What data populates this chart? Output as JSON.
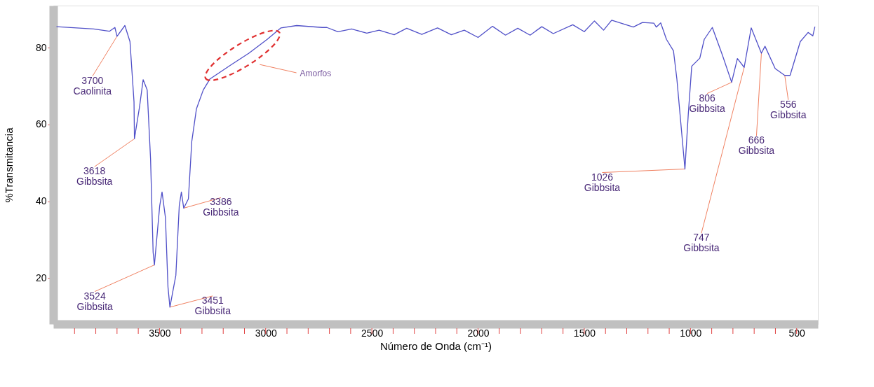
{
  "chart_data": {
    "type": "line",
    "xlabel": "Número de Onda (cm⁻¹)",
    "ylabel": "%Transmitancia",
    "xlim": [
      4000,
      400
    ],
    "ylim": [
      8,
      91
    ],
    "xticks": [
      {
        "value": 3900,
        "label": null
      },
      {
        "value": 3800,
        "label": null
      },
      {
        "value": 3700,
        "label": null
      },
      {
        "value": 3600,
        "label": null
      },
      3500,
      {
        "value": 3400,
        "label": null
      },
      {
        "value": 3300,
        "label": null
      },
      {
        "value": 3200,
        "label": null
      },
      {
        "value": 3100,
        "label": null
      },
      3000,
      {
        "value": 2900,
        "label": null
      },
      {
        "value": 2800,
        "label": null
      },
      {
        "value": 2700,
        "label": null
      },
      {
        "value": 2600,
        "label": null
      },
      2500,
      {
        "value": 2400,
        "label": null
      },
      {
        "value": 2300,
        "label": null
      },
      {
        "value": 2200,
        "label": null
      },
      {
        "value": 2100,
        "label": null
      },
      2000,
      {
        "value": 1900,
        "label": null
      },
      {
        "value": 1800,
        "label": null
      },
      {
        "value": 1700,
        "label": null
      },
      {
        "value": 1600,
        "label": null
      },
      1500,
      {
        "value": 1400,
        "label": null
      },
      {
        "value": 1300,
        "label": null
      },
      {
        "value": 1200,
        "label": null
      },
      {
        "value": 1100,
        "label": null
      },
      1000,
      {
        "value": 900,
        "label": null
      },
      {
        "value": 800,
        "label": null
      },
      {
        "value": 700,
        "label": null
      },
      {
        "value": 600,
        "label": null
      },
      500
    ],
    "yticks": [
      20,
      40,
      60,
      80
    ],
    "grid": false,
    "legend": false,
    "marker": "none",
    "line_style": "solid",
    "series": [
      {
        "color": "#5050c8",
        "x": [
          3985,
          3810,
          3736,
          3710,
          3700,
          3663,
          3639,
          3620,
          3618,
          3594,
          3577,
          3558,
          3542,
          3530,
          3524,
          3499,
          3488,
          3472,
          3460,
          3451,
          3423,
          3407,
          3397,
          3386,
          3364,
          3348,
          3326,
          3294,
          3262,
          3165,
          3079,
          2993,
          2928,
          2854,
          2734,
          2712,
          2660,
          2595,
          2524,
          2466,
          2395,
          2336,
          2265,
          2191,
          2126,
          2065,
          2000,
          1932,
          1871,
          1813,
          1755,
          1700,
          1646,
          1554,
          1500,
          1452,
          1409,
          1371,
          1269,
          1226,
          1172,
          1161,
          1140,
          1113,
          1080,
          1064,
          1026,
          1010,
          994,
          956,
          935,
          897,
          849,
          806,
          779,
          747,
          714,
          666,
          649,
          601,
          556,
          531,
          483,
          446,
          424,
          414
        ],
        "values": [
          85.5,
          84.9,
          84.3,
          85.3,
          83,
          85.8,
          81.6,
          65.9,
          56.3,
          64.6,
          71.7,
          69,
          50.9,
          26.7,
          23.4,
          38.8,
          42.4,
          35.7,
          17.6,
          12.4,
          20.7,
          38.8,
          42.4,
          38.2,
          40.6,
          55.6,
          64.1,
          69,
          71.9,
          75.5,
          78.6,
          82.2,
          85.2,
          85.8,
          85.3,
          85.3,
          84.2,
          84.9,
          83.8,
          84.6,
          83.4,
          85.1,
          83.5,
          85.2,
          83.4,
          84.6,
          82.7,
          85.6,
          83.3,
          85.1,
          83.3,
          85.5,
          83.7,
          86,
          84.2,
          87,
          84.6,
          87.2,
          85.4,
          86.6,
          86.4,
          85.4,
          86.5,
          82.2,
          79.2,
          71.9,
          48.4,
          62.9,
          75.2,
          77.3,
          82.2,
          85.3,
          78,
          71,
          77.2,
          74.9,
          85.2,
          78.6,
          80.4,
          74.6,
          72.8,
          72.8,
          81.6,
          84,
          83.1,
          85.5
        ]
      }
    ],
    "annotations": [
      {
        "text": "3700\nCaolinita",
        "x": 3700,
        "y": 83
      },
      {
        "text": "3618\nGibbsita",
        "x": 3618,
        "y": 56.3
      },
      {
        "text": "3524\nGibbsita",
        "x": 3524,
        "y": 23.4
      },
      {
        "text": "3451\nGibbsita",
        "x": 3451,
        "y": 12.4
      },
      {
        "text": "3386\nGibbsita",
        "x": 3386,
        "y": 38.2
      },
      "Amorfos",
      {
        "text": "1026\nGibbsita",
        "x": 1026,
        "y": 48.4
      },
      {
        "text": "806\nGibbsita",
        "x": 806,
        "y": 71
      },
      {
        "text": "747\nGibbsita",
        "x": 747,
        "y": 74.9
      },
      {
        "text": "666\nGibbsita",
        "x": 666,
        "y": 78.6
      },
      {
        "text": "556\nGibbsita",
        "x": 556,
        "y": 72.8
      }
    ]
  }
}
